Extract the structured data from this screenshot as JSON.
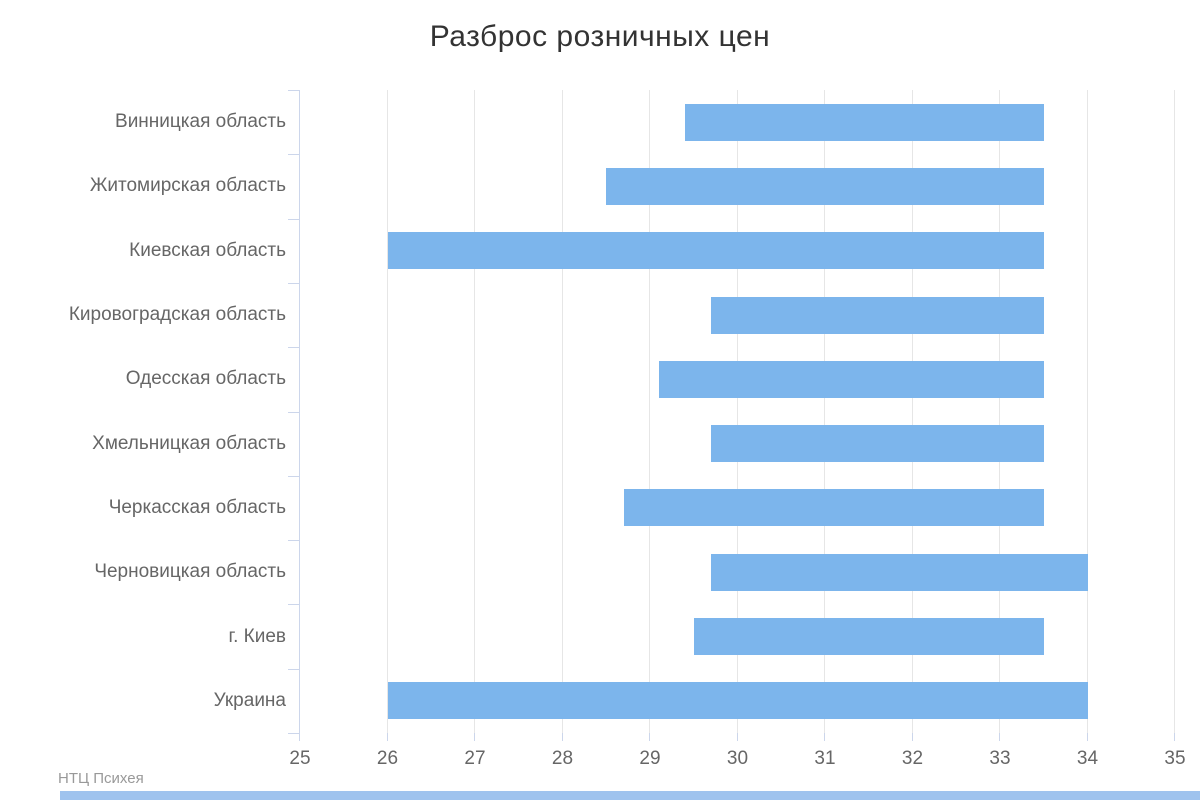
{
  "page": {
    "background": "#ffffff"
  },
  "chart_data": {
    "type": "bar",
    "subtype": "horizontal-range-bars",
    "title": "Разброс розничных цен",
    "categories": [
      "Винницкая область",
      "Житомирская область",
      "Киевская область",
      "Кировоградская область",
      "Одесская область",
      "Хмельницкая область",
      "Черкасская область",
      "Черновицкая область",
      "г. Киев",
      "Украина"
    ],
    "series": [
      {
        "ranges": [
          [
            29.4,
            33.5
          ],
          [
            28.5,
            33.5
          ],
          [
            26.0,
            33.5
          ],
          [
            29.7,
            33.5
          ],
          [
            29.1,
            33.5
          ],
          [
            29.7,
            33.5
          ],
          [
            28.7,
            33.5
          ],
          [
            29.7,
            34.0
          ],
          [
            29.5,
            33.5
          ],
          [
            26.0,
            34.0
          ]
        ]
      }
    ],
    "value_axis": {
      "min": 25,
      "max": 35,
      "tick_interval": 1,
      "ticks": [
        25,
        26,
        27,
        28,
        29,
        30,
        31,
        32,
        33,
        34,
        35
      ]
    },
    "grid": true,
    "legend": false,
    "credits": "НТЦ Психея",
    "colors": {
      "bar": "#7cb5ec",
      "grid_line": "#e6e6e6",
      "axis_line": "#ccd6eb",
      "title_text": "#333333",
      "label_text": "#666666",
      "credits_text": "#999999",
      "bottom_strip": "#9fc3ee"
    }
  }
}
